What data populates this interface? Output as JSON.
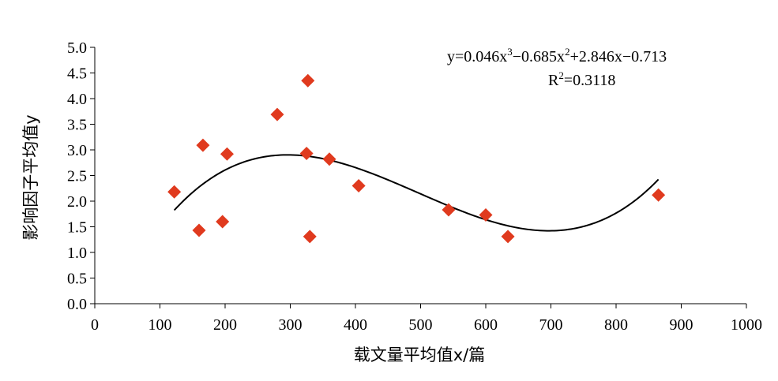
{
  "chart_data": {
    "type": "scatter",
    "xlabel": "载文量平均值x/篇",
    "ylabel": "影响因子平均值y",
    "xlim": [
      0,
      1000
    ],
    "ylim": [
      0,
      5
    ],
    "x_ticks": [
      "0",
      "100",
      "200",
      "300",
      "400",
      "500",
      "600",
      "700",
      "800",
      "900",
      "1000"
    ],
    "y_ticks": [
      "0.0",
      "0.5",
      "1.0",
      "1.5",
      "2.0",
      "2.5",
      "3.0",
      "3.5",
      "4.0",
      "4.5",
      "5.0"
    ],
    "grid": false,
    "marker": "diamond",
    "marker_color": "#e03a1e",
    "trend_color": "#000000",
    "points": [
      {
        "x": 122,
        "y": 2.18
      },
      {
        "x": 160,
        "y": 1.43
      },
      {
        "x": 166,
        "y": 3.09
      },
      {
        "x": 196,
        "y": 1.6
      },
      {
        "x": 203,
        "y": 2.92
      },
      {
        "x": 280,
        "y": 3.69
      },
      {
        "x": 325,
        "y": 2.93
      },
      {
        "x": 327,
        "y": 4.35
      },
      {
        "x": 330,
        "y": 1.31
      },
      {
        "x": 360,
        "y": 2.82
      },
      {
        "x": 405,
        "y": 2.3
      },
      {
        "x": 543,
        "y": 1.83
      },
      {
        "x": 600,
        "y": 1.73
      },
      {
        "x": 634,
        "y": 1.31
      },
      {
        "x": 865,
        "y": 2.12
      }
    ],
    "trendline": {
      "type": "polynomial",
      "order": 3,
      "x_scale": 100,
      "coefficients": [
        -0.713,
        2.846,
        -0.685,
        0.046
      ],
      "x_range": [
        122,
        865
      ]
    },
    "equation": {
      "y_label": "y",
      "part1": "=0.046x",
      "part2": "−0.685x",
      "part3": "+2.846x−0.713",
      "sup3": "3",
      "sup2": "2",
      "r2_label": "R",
      "r2_value": "=0.3118"
    }
  }
}
